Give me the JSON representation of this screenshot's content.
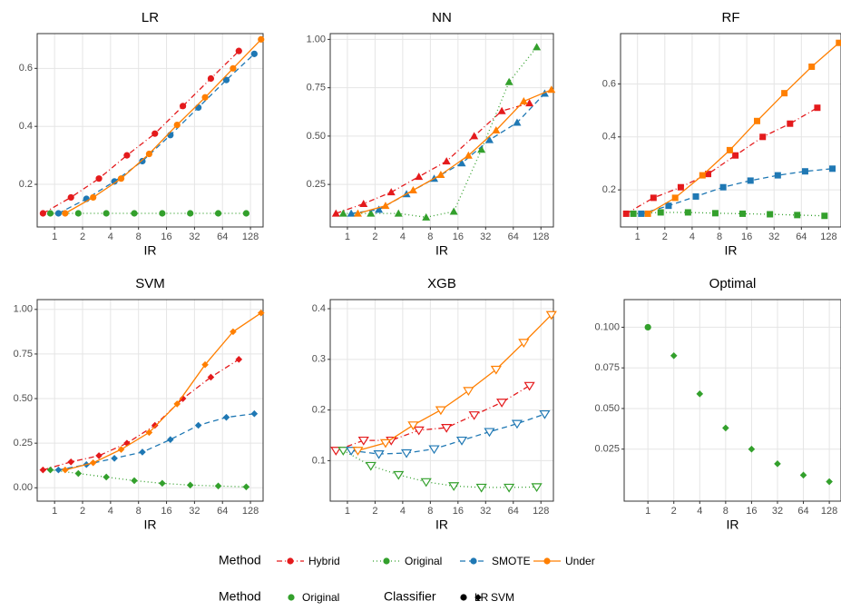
{
  "chart_data": [
    {
      "type": "line",
      "title": "LR",
      "xlabel": "IR",
      "marker": "circle",
      "log_x": true,
      "grid": true,
      "xlim": [
        0.65,
        175
      ],
      "xticks": [
        1,
        2,
        4,
        8,
        16,
        32,
        64,
        128
      ],
      "ylim": [
        0.053,
        0.72
      ],
      "yticks": [
        0.2,
        0.4,
        0.6
      ],
      "series": [
        {
          "name": "Hybrid",
          "color": "#e41a1c",
          "dash": "6,3,1,3",
          "x": [
            0.75,
            1.5,
            3,
            6,
            12,
            24,
            48,
            96
          ],
          "values": [
            0.1,
            0.155,
            0.22,
            0.3,
            0.375,
            0.47,
            0.565,
            0.66
          ]
        },
        {
          "name": "Original",
          "color": "#33a02c",
          "dash": "1,3",
          "x": [
            0.9,
            1.8,
            3.6,
            7.2,
            14.4,
            28.8,
            57.6,
            115.2
          ],
          "values": [
            0.1,
            0.1,
            0.1,
            0.1,
            0.1,
            0.1,
            0.1,
            0.1
          ]
        },
        {
          "name": "SMOTE",
          "color": "#1f78b4",
          "dash": "6,4",
          "x": [
            1.1,
            2.2,
            4.4,
            8.8,
            17.6,
            35.2,
            70.4,
            140.8
          ],
          "values": [
            0.1,
            0.15,
            0.21,
            0.28,
            0.37,
            0.465,
            0.56,
            0.65
          ]
        },
        {
          "name": "Under",
          "color": "#ff7f00",
          "dash": "none",
          "x": [
            1.3,
            2.6,
            5.2,
            10.4,
            20.8,
            41.6,
            83.2,
            166.4
          ],
          "values": [
            0.1,
            0.155,
            0.22,
            0.305,
            0.405,
            0.5,
            0.6,
            0.7
          ]
        }
      ]
    },
    {
      "type": "line",
      "title": "NN",
      "xlabel": "IR",
      "marker": "triangle",
      "log_x": true,
      "grid": true,
      "xlim": [
        0.65,
        175
      ],
      "xticks": [
        1,
        2,
        4,
        8,
        16,
        32,
        64,
        128
      ],
      "ylim": [
        0.03,
        1.03
      ],
      "yticks": [
        0.25,
        {
          "value": 0.5,
          "label": "0.50"
        },
        0.75,
        {
          "value": 1,
          "label": "1.00"
        }
      ],
      "series": [
        {
          "name": "Hybrid",
          "color": "#e41a1c",
          "dash": "6,3,1,3",
          "x": [
            0.75,
            1.5,
            3,
            6,
            12,
            24,
            48,
            96
          ],
          "values": [
            0.1,
            0.15,
            0.21,
            0.29,
            0.37,
            0.5,
            0.63,
            0.67
          ]
        },
        {
          "name": "Original",
          "color": "#33a02c",
          "dash": "1,3",
          "x": [
            0.9,
            1.8,
            3.6,
            7.2,
            14.4,
            28.8,
            57.6,
            115.2
          ],
          "values": [
            0.1,
            0.1,
            0.1,
            0.08,
            0.11,
            0.43,
            0.78,
            0.96
          ]
        },
        {
          "name": "SMOTE",
          "color": "#1f78b4",
          "dash": "6,4",
          "x": [
            1.1,
            2.2,
            4.4,
            8.8,
            17.6,
            35.2,
            70.4,
            140.8
          ],
          "values": [
            0.1,
            0.12,
            0.2,
            0.28,
            0.36,
            0.48,
            0.57,
            0.72
          ]
        },
        {
          "name": "Under",
          "color": "#ff7f00",
          "dash": "none",
          "x": [
            1.3,
            2.6,
            5.2,
            10.4,
            20.8,
            41.6,
            83.2,
            166.4
          ],
          "values": [
            0.1,
            0.14,
            0.22,
            0.3,
            0.4,
            0.53,
            0.68,
            0.74
          ]
        }
      ]
    },
    {
      "type": "line",
      "title": "RF",
      "xlabel": "IR",
      "marker": "square",
      "log_x": true,
      "grid": true,
      "xlim": [
        0.65,
        175
      ],
      "xticks": [
        1,
        2,
        4,
        8,
        16,
        32,
        64,
        128
      ],
      "ylim": [
        0.06,
        0.79
      ],
      "yticks": [
        0.2,
        0.4,
        0.6
      ],
      "series": [
        {
          "name": "Hybrid",
          "color": "#e41a1c",
          "dash": "6,3,1,3",
          "x": [
            0.75,
            1.5,
            3,
            6,
            12,
            24,
            48,
            96
          ],
          "values": [
            0.11,
            0.17,
            0.21,
            0.26,
            0.33,
            0.4,
            0.45,
            0.51
          ]
        },
        {
          "name": "Original",
          "color": "#33a02c",
          "dash": "1,3",
          "x": [
            0.9,
            1.8,
            3.6,
            7.2,
            14.4,
            28.8,
            57.6,
            115.2
          ],
          "values": [
            0.11,
            0.115,
            0.115,
            0.112,
            0.11,
            0.108,
            0.105,
            0.102
          ]
        },
        {
          "name": "SMOTE",
          "color": "#1f78b4",
          "dash": "6,4",
          "x": [
            1.1,
            2.2,
            4.4,
            8.8,
            17.6,
            35.2,
            70.4,
            140.8
          ],
          "values": [
            0.11,
            0.14,
            0.175,
            0.21,
            0.235,
            0.255,
            0.27,
            0.28
          ]
        },
        {
          "name": "Under",
          "color": "#ff7f00",
          "dash": "none",
          "x": [
            1.3,
            2.6,
            5.2,
            10.4,
            20.8,
            41.6,
            83.2,
            166.4
          ],
          "values": [
            0.11,
            0.17,
            0.255,
            0.35,
            0.46,
            0.565,
            0.665,
            0.755
          ]
        }
      ]
    },
    {
      "type": "line",
      "title": "SVM",
      "xlabel": "IR",
      "marker": "diamond",
      "log_x": true,
      "grid": true,
      "xlim": [
        0.65,
        175
      ],
      "xticks": [
        1,
        2,
        4,
        8,
        16,
        32,
        64,
        128
      ],
      "ylim": [
        -0.075,
        1.055
      ],
      "yticks": [
        {
          "value": 0,
          "label": "0.00"
        },
        0.25,
        {
          "value": 0.5,
          "label": "0.50"
        },
        0.75,
        {
          "value": 1,
          "label": "1.00"
        }
      ],
      "series": [
        {
          "name": "Hybrid",
          "color": "#e41a1c",
          "dash": "6,3,1,3",
          "x": [
            0.75,
            1.5,
            3,
            6,
            12,
            24,
            48,
            96
          ],
          "values": [
            0.1,
            0.145,
            0.18,
            0.25,
            0.35,
            0.5,
            0.62,
            0.72
          ]
        },
        {
          "name": "Original",
          "color": "#33a02c",
          "dash": "1,3",
          "x": [
            0.9,
            1.8,
            3.6,
            7.2,
            14.4,
            28.8,
            57.6,
            115.2
          ],
          "values": [
            0.1,
            0.08,
            0.06,
            0.04,
            0.025,
            0.015,
            0.01,
            0.005
          ]
        },
        {
          "name": "SMOTE",
          "color": "#1f78b4",
          "dash": "6,4",
          "x": [
            1.1,
            2.2,
            4.4,
            8.8,
            17.6,
            35.2,
            70.4,
            140.8
          ],
          "values": [
            0.1,
            0.13,
            0.165,
            0.2,
            0.27,
            0.35,
            0.395,
            0.415
          ]
        },
        {
          "name": "Under",
          "color": "#ff7f00",
          "dash": "none",
          "x": [
            1.3,
            2.6,
            5.2,
            10.4,
            20.8,
            41.6,
            83.2,
            166.4
          ],
          "values": [
            0.1,
            0.14,
            0.215,
            0.31,
            0.47,
            0.69,
            0.875,
            0.98
          ]
        }
      ]
    },
    {
      "type": "line",
      "title": "XGB",
      "xlabel": "IR",
      "marker": "open-triangle-down",
      "log_x": true,
      "grid": true,
      "xlim": [
        0.65,
        175
      ],
      "xticks": [
        1,
        2,
        4,
        8,
        16,
        32,
        64,
        128
      ],
      "ylim": [
        0.02,
        0.418
      ],
      "yticks": [
        0.1,
        0.2,
        0.3,
        0.4
      ],
      "series": [
        {
          "name": "Hybrid",
          "color": "#e41a1c",
          "dash": "6,3,1,3",
          "x": [
            0.75,
            1.5,
            3,
            6,
            12,
            24,
            48,
            96
          ],
          "values": [
            0.12,
            0.14,
            0.14,
            0.16,
            0.165,
            0.19,
            0.215,
            0.248
          ]
        },
        {
          "name": "Original",
          "color": "#33a02c",
          "dash": "1,3",
          "x": [
            0.9,
            1.8,
            3.6,
            7.2,
            14.4,
            28.8,
            57.6,
            115.2
          ],
          "values": [
            0.12,
            0.09,
            0.072,
            0.058,
            0.05,
            0.047,
            0.047,
            0.048
          ]
        },
        {
          "name": "SMOTE",
          "color": "#1f78b4",
          "dash": "6,4",
          "x": [
            1.1,
            2.2,
            4.4,
            8.8,
            17.6,
            35.2,
            70.4,
            140.8
          ],
          "values": [
            0.12,
            0.113,
            0.115,
            0.123,
            0.14,
            0.157,
            0.173,
            0.192
          ]
        },
        {
          "name": "Under",
          "color": "#ff7f00",
          "dash": "none",
          "x": [
            1.3,
            2.6,
            5.2,
            10.4,
            20.8,
            41.6,
            83.2,
            166.4
          ],
          "values": [
            0.12,
            0.135,
            0.17,
            0.2,
            0.238,
            0.28,
            0.333,
            0.388
          ]
        }
      ]
    },
    {
      "type": "scatter",
      "title": "Optimal",
      "xlabel": "IR",
      "log_x": true,
      "grid": true,
      "xlim": [
        0.53,
        175
      ],
      "xticks": [
        1,
        2,
        4,
        8,
        16,
        32,
        64,
        128
      ],
      "ylim": [
        -0.007,
        0.117
      ],
      "yticks": [
        0.025,
        {
          "value": 0.05,
          "label": "0.050"
        },
        0.075,
        {
          "value": 0.1,
          "label": "0.100"
        }
      ],
      "series": [
        {
          "name": "Original",
          "color": "#33a02c",
          "x": [
            1,
            2,
            4,
            8,
            16,
            32,
            64,
            128
          ],
          "values": [
            0.1,
            0.0825,
            0.059,
            0.038,
            0.025,
            0.016,
            0.009,
            0.005
          ],
          "shapes": [
            "circle",
            "diamond",
            "diamond",
            "diamond",
            "diamond",
            "diamond",
            "diamond",
            "diamond"
          ]
        }
      ]
    }
  ],
  "legends": [
    {
      "title": "Method"
    },
    {
      "title": "Method"
    },
    {
      "title": "Classifier",
      "items": [
        "LR",
        "SVM"
      ],
      "shapes": [
        "circle",
        "diamond"
      ]
    }
  ]
}
